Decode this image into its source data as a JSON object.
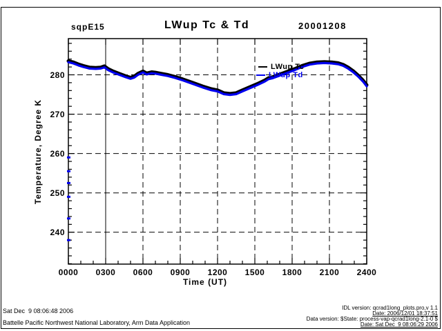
{
  "header": {
    "site": "sqpE15",
    "title": "LWup Tc & Td",
    "date": "20001208"
  },
  "axes": {
    "ylabel": "Temperature, Degree K",
    "xlabel": "Time (UT)",
    "x_tick_labels": [
      "0000",
      "0300",
      "0600",
      "0900",
      "1200",
      "1500",
      "1800",
      "2100",
      "2400"
    ],
    "y_tick_labels": [
      "240",
      "250",
      "260",
      "270",
      "280"
    ]
  },
  "legend": {
    "position": "inside-top-right",
    "items": [
      {
        "label": "LWup Tc",
        "color": "#000000"
      },
      {
        "label": "LWup Td",
        "color": "#0000ee"
      }
    ]
  },
  "footer_left": {
    "line1": "Sat Dec  9 08:06:48 2006",
    "line2": "Battelle Pacific Northwest National Laboratory, Arm Data Application"
  },
  "footer_right": {
    "lines": [
      {
        "text": "IDL version: qcrad1long_plots.pro,v 1.1",
        "underline": false
      },
      {
        "text": "Date: 2006/12/01 18:37:51",
        "underline": true
      },
      {
        "text": "Data version: $State: process-vap-qcrad1long-2.1-0 $",
        "underline": false
      },
      {
        "text": "Date: Sat Dec  9 08:06:29 2006",
        "underline": true
      }
    ]
  },
  "chart_data": {
    "type": "line",
    "title": "LWup Tc & Td",
    "xlabel": "Time (UT)",
    "ylabel": "Temperature, Degree K",
    "xlim": [
      0,
      24
    ],
    "ylim": [
      231.9,
      289.2
    ],
    "x_major_ticks": [
      0,
      3,
      6,
      9,
      12,
      15,
      18,
      21,
      24
    ],
    "y_major_ticks": [
      240,
      250,
      260,
      270,
      280
    ],
    "x_minor_step": 1,
    "y_minor_step": 2,
    "grid": {
      "y_dashed": [
        240,
        250,
        260,
        270,
        280
      ],
      "x_dashed": [
        6,
        9,
        12,
        15,
        18,
        21
      ],
      "x_solid": [
        3
      ]
    },
    "x": [
      0,
      0.4,
      0.8,
      1.2,
      1.7,
      2.2,
      2.6,
      2.9,
      3.2,
      3.6,
      4.1,
      4.6,
      5.0,
      5.3,
      5.6,
      6.0,
      6.3,
      6.7,
      7.0,
      7.5,
      8.0,
      8.6,
      9.2,
      10.0,
      10.8,
      11.5,
      12.0,
      12.5,
      13.0,
      13.5,
      14.0,
      14.6,
      15.2,
      15.8,
      16.1,
      16.4,
      17.0,
      17.6,
      18.2,
      18.8,
      19.4,
      20.0,
      20.6,
      21.2,
      21.7,
      22.1,
      22.5,
      22.9,
      23.3,
      23.7,
      24.0
    ],
    "series": [
      {
        "name": "LWup Tc",
        "color": "#000000",
        "width": 5,
        "values": [
          283.5,
          283.2,
          282.7,
          282.3,
          281.9,
          281.8,
          281.9,
          282.2,
          281.5,
          280.9,
          280.3,
          279.7,
          279.3,
          279.6,
          280.3,
          280.9,
          280.4,
          280.7,
          280.6,
          280.3,
          280.0,
          279.5,
          278.9,
          278.0,
          277.1,
          276.4,
          276.1,
          275.4,
          275.2,
          275.4,
          276.1,
          276.9,
          277.7,
          278.6,
          279.2,
          279.4,
          280.1,
          280.8,
          281.5,
          282.3,
          282.9,
          283.2,
          283.3,
          283.2,
          283.0,
          282.6,
          281.9,
          281.0,
          279.9,
          278.6,
          277.4
        ]
      },
      {
        "name": "LWup Td",
        "color": "#0000ee",
        "width": 3.2,
        "values": [
          283.2,
          282.9,
          282.4,
          282.0,
          281.6,
          281.5,
          281.6,
          281.9,
          281.2,
          280.6,
          280.0,
          279.4,
          279.0,
          279.3,
          280.0,
          280.6,
          280.1,
          280.4,
          280.3,
          280.0,
          279.7,
          279.2,
          278.6,
          277.7,
          276.8,
          276.1,
          275.8,
          275.1,
          274.9,
          275.1,
          275.8,
          276.6,
          277.4,
          278.3,
          278.9,
          279.1,
          279.8,
          280.5,
          281.2,
          282.0,
          282.6,
          282.9,
          283.0,
          282.9,
          282.7,
          282.3,
          281.6,
          280.7,
          279.6,
          278.3,
          277.1
        ]
      }
    ],
    "stray_points": {
      "series": "LWup Td",
      "x": 0,
      "color": "#0000ee",
      "values": [
        259,
        255.5,
        252.5,
        249,
        243.5,
        238
      ]
    }
  }
}
